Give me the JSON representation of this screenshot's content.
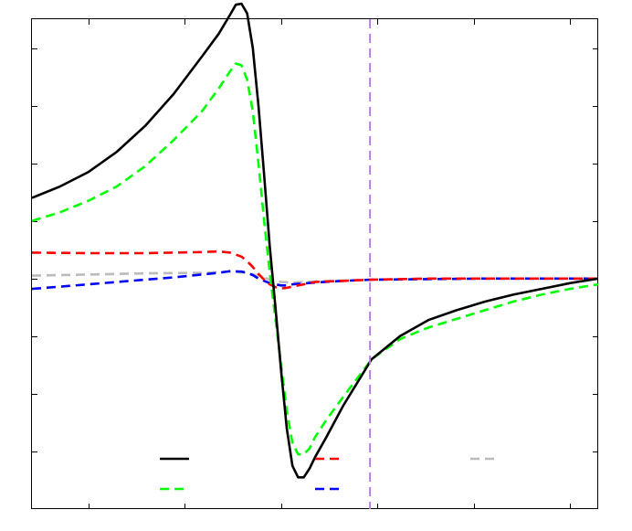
{
  "chart_data": {
    "type": "line",
    "title": "",
    "xlabel": "",
    "ylabel": "",
    "xlim": [
      0,
      1
    ],
    "ylim": [
      -4,
      4.5
    ],
    "grid": false,
    "legend_position": "bottom",
    "tick_labels_visible": false,
    "vertical_marker": {
      "x": 0.597,
      "color": "#b57edc",
      "style": "dashed"
    },
    "series": [
      {
        "name": "",
        "color": "#000000",
        "style": "solid",
        "x": [
          0,
          0.05,
          0.1,
          0.15,
          0.2,
          0.25,
          0.3,
          0.33,
          0.35,
          0.36,
          0.37,
          0.38,
          0.39,
          0.4,
          0.41,
          0.42,
          0.43,
          0.44,
          0.45,
          0.46,
          0.47,
          0.48,
          0.49,
          0.5,
          0.52,
          0.55,
          0.6,
          0.65,
          0.7,
          0.75,
          0.8,
          0.85,
          0.9,
          0.95,
          1
        ],
        "y": [
          1.4,
          1.6,
          1.85,
          2.2,
          2.65,
          3.2,
          3.85,
          4.25,
          4.58,
          4.75,
          4.77,
          4.6,
          4.0,
          3.0,
          1.8,
          0.55,
          -0.5,
          -1.6,
          -2.6,
          -3.25,
          -3.45,
          -3.45,
          -3.3,
          -3.1,
          -2.75,
          -2.2,
          -1.4,
          -1.0,
          -0.72,
          -0.55,
          -0.4,
          -0.28,
          -0.18,
          -0.08,
          0.0
        ]
      },
      {
        "name": "",
        "color": "#00ff00",
        "style": "dashed",
        "x": [
          0,
          0.05,
          0.1,
          0.15,
          0.2,
          0.25,
          0.3,
          0.33,
          0.35,
          0.36,
          0.37,
          0.38,
          0.39,
          0.4,
          0.41,
          0.42,
          0.43,
          0.44,
          0.45,
          0.46,
          0.47,
          0.48,
          0.49,
          0.5,
          0.52,
          0.55,
          0.6,
          0.65,
          0.7,
          0.75,
          0.8,
          0.85,
          0.9,
          0.95,
          1
        ],
        "y": [
          1.0,
          1.15,
          1.35,
          1.6,
          1.95,
          2.4,
          2.9,
          3.3,
          3.6,
          3.73,
          3.7,
          3.45,
          2.9,
          2.0,
          1.0,
          0.1,
          -0.7,
          -1.5,
          -2.3,
          -2.85,
          -3.05,
          -3.05,
          -2.95,
          -2.75,
          -2.45,
          -2.05,
          -1.4,
          -1.05,
          -0.85,
          -0.7,
          -0.55,
          -0.4,
          -0.28,
          -0.18,
          -0.1
        ]
      },
      {
        "name": "",
        "color": "#ff0000",
        "style": "dashed",
        "x": [
          0,
          0.1,
          0.2,
          0.3,
          0.33,
          0.35,
          0.37,
          0.38,
          0.39,
          0.4,
          0.41,
          0.42,
          0.43,
          0.44,
          0.45,
          0.46,
          0.47,
          0.48,
          0.5,
          0.55,
          0.6,
          0.7,
          0.8,
          0.9,
          1
        ],
        "y": [
          0.45,
          0.44,
          0.44,
          0.46,
          0.47,
          0.45,
          0.38,
          0.3,
          0.2,
          0.08,
          -0.02,
          -0.1,
          -0.15,
          -0.17,
          -0.16,
          -0.14,
          -0.12,
          -0.1,
          -0.06,
          -0.04,
          -0.02,
          0.0,
          0.0,
          0.0,
          0.0
        ]
      },
      {
        "name": "",
        "color": "#bbbbbb",
        "style": "dashed",
        "x": [
          0,
          0.1,
          0.2,
          0.3,
          0.35,
          0.38,
          0.4,
          0.42,
          0.44,
          0.46,
          0.5,
          0.6,
          0.7,
          0.8,
          0.9,
          1
        ],
        "y": [
          0.05,
          0.07,
          0.09,
          0.1,
          0.12,
          0.1,
          0.05,
          -0.02,
          -0.06,
          -0.07,
          -0.05,
          -0.02,
          0.0,
          0.0,
          0.0,
          0.0
        ]
      },
      {
        "name": "",
        "color": "#0000ff",
        "style": "dashed",
        "x": [
          0,
          0.05,
          0.1,
          0.15,
          0.2,
          0.25,
          0.3,
          0.33,
          0.35,
          0.37,
          0.38,
          0.39,
          0.4,
          0.41,
          0.42,
          0.43,
          0.44,
          0.45,
          0.46,
          0.5,
          0.55,
          0.6,
          0.7,
          0.8,
          0.9,
          1
        ],
        "y": [
          -0.18,
          -0.14,
          -0.1,
          -0.06,
          -0.02,
          0.02,
          0.07,
          0.1,
          0.13,
          0.12,
          0.1,
          0.06,
          0.0,
          -0.04,
          -0.08,
          -0.1,
          -0.12,
          -0.12,
          -0.1,
          -0.07,
          -0.04,
          -0.02,
          -0.01,
          0.0,
          0.0,
          0.0
        ]
      }
    ],
    "legend": [
      {
        "label": "",
        "color": "#000000",
        "style": "solid"
      },
      {
        "label": "",
        "color": "#ff0000",
        "style": "dashed"
      },
      {
        "label": "",
        "color": "#bbbbbb",
        "style": "dashed"
      },
      {
        "label": "",
        "color": "#00ff00",
        "style": "dashed"
      },
      {
        "label": "",
        "color": "#0000ff",
        "style": "dashed"
      }
    ]
  }
}
